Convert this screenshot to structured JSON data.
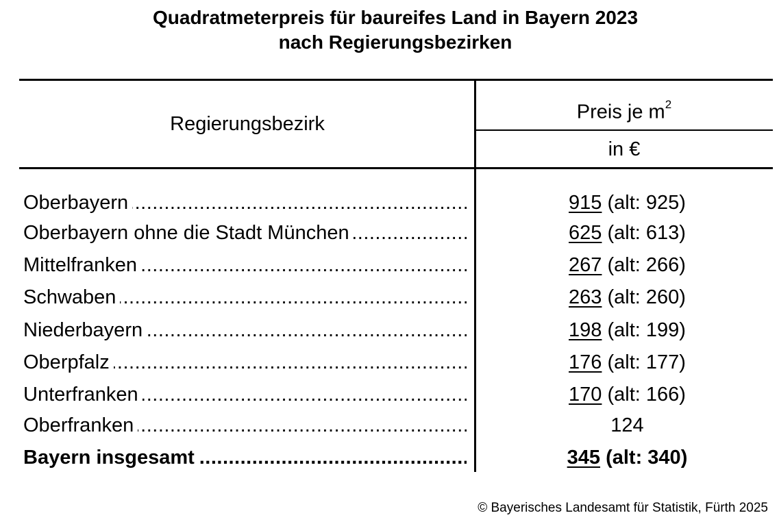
{
  "title": {
    "line1": "Quadratmeterpreis für baureifes Land in Bayern 2023",
    "line2": "nach Regierungsbezirken"
  },
  "table": {
    "col_region": "Regierungsbezirk",
    "col_price": "Preis je m",
    "col_price_sup": "2",
    "col_unit": "in €",
    "rows": [
      {
        "label": "Oberbayern",
        "value": "915",
        "old": "(alt: 925)"
      },
      {
        "label": "Oberbayern ohne die Stadt München",
        "value": "625",
        "old": "(alt: 613)"
      },
      {
        "label": "Mittelfranken",
        "value": "267",
        "old": "(alt: 266)"
      },
      {
        "label": "Schwaben",
        "value": "263",
        "old": "(alt: 260)"
      },
      {
        "label": "Niederbayern",
        "value": "198",
        "old": "(alt: 199)"
      },
      {
        "label": "Oberpfalz",
        "value": "176",
        "old": "(alt: 177)"
      },
      {
        "label": "Unterfranken",
        "value": "170",
        "old": "(alt: 166)"
      },
      {
        "label": "Oberfranken",
        "value": "124",
        "old": ""
      }
    ],
    "total": {
      "label": "Bayern insgesamt",
      "value": "345",
      "old": "(alt: 340)"
    }
  },
  "footer": "© Bayerisches Landesamt für Statistik, Fürth 2025"
}
